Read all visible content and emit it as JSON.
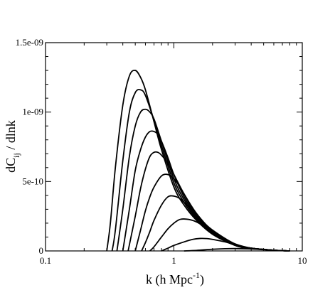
{
  "chart_data": {
    "type": "line",
    "title": "",
    "xlabel": {
      "main": "k (h Mpc",
      "sup": "-1",
      "close": ")"
    },
    "ylabel": {
      "main": "dC",
      "sub": "ij",
      "rest": " / dlnk"
    },
    "xscale": "log",
    "xlim": [
      0.1,
      10
    ],
    "ylim": [
      0,
      1.5e-09
    ],
    "xticks": [
      {
        "value": 0.1,
        "label": "0.1"
      },
      {
        "value": 1,
        "label": "1"
      },
      {
        "value": 10,
        "label": "10"
      }
    ],
    "yticks": [
      {
        "value": 0,
        "label": "0"
      },
      {
        "value": 5e-10,
        "label": "5e-10"
      },
      {
        "value": 1e-09,
        "label": "1e-09"
      },
      {
        "value": 1.5e-09,
        "label": "1.5e-09"
      }
    ],
    "grid": false,
    "legend": "none",
    "line_color": "#000000",
    "series": [
      {
        "x": [
          0.3,
          0.32,
          0.35,
          0.4,
          0.45,
          0.5,
          0.55,
          0.6,
          0.7,
          0.8,
          1.0,
          1.2,
          1.5,
          2.0,
          3.0,
          4.0,
          6.0,
          8.0
        ],
        "y": [
          0,
          2e-10,
          6e-10,
          1.05e-09,
          1.26e-09,
          1.3e-09,
          1.25e-09,
          1.16e-09,
          9.3e-10,
          7.3e-10,
          4.6e-10,
          3.3e-10,
          2.2e-10,
          1.2e-10,
          4e-11,
          2e-11,
          5e-12,
          0
        ]
      },
      {
        "x": [
          0.33,
          0.35,
          0.4,
          0.45,
          0.5,
          0.55,
          0.6,
          0.7,
          0.8,
          1.0,
          1.2,
          1.5,
          2.0,
          3.0,
          4.0,
          6.0,
          8.0
        ],
        "y": [
          0,
          1.5e-10,
          6.5e-10,
          1e-09,
          1.14e-09,
          1.16e-09,
          1.12e-09,
          9.4e-10,
          7.6e-10,
          4.9e-10,
          3.5e-10,
          2.3e-10,
          1.25e-10,
          4e-11,
          2e-11,
          5e-12,
          0
        ]
      },
      {
        "x": [
          0.36,
          0.4,
          0.45,
          0.5,
          0.55,
          0.6,
          0.65,
          0.7,
          0.8,
          1.0,
          1.2,
          1.5,
          2.0,
          3.0,
          4.0,
          6.0,
          8.0
        ],
        "y": [
          0,
          3e-10,
          6.8e-10,
          9e-10,
          1e-09,
          1.02e-09,
          1e-09,
          9.5e-10,
          7.9e-10,
          5.2e-10,
          3.7e-10,
          2.4e-10,
          1.3e-10,
          4e-11,
          2e-11,
          5e-12,
          0
        ]
      },
      {
        "x": [
          0.4,
          0.45,
          0.5,
          0.55,
          0.6,
          0.65,
          0.7,
          0.75,
          0.8,
          0.9,
          1.0,
          1.2,
          1.5,
          2.0,
          3.0,
          4.0,
          6.0,
          8.0
        ],
        "y": [
          0,
          3e-10,
          5.8e-10,
          7.3e-10,
          8.2e-10,
          8.6e-10,
          8.6e-10,
          8.4e-10,
          7.9e-10,
          6.7e-10,
          5.5e-10,
          3.9e-10,
          2.5e-10,
          1.35e-10,
          4e-11,
          2e-11,
          5e-12,
          0
        ]
      },
      {
        "x": [
          0.44,
          0.5,
          0.55,
          0.6,
          0.65,
          0.7,
          0.75,
          0.8,
          0.9,
          1.0,
          1.2,
          1.5,
          2.0,
          3.0,
          4.0,
          6.0,
          8.0
        ],
        "y": [
          0,
          2.5e-10,
          4.5e-10,
          5.9e-10,
          6.8e-10,
          7.1e-10,
          7.1e-10,
          6.9e-10,
          6.3e-10,
          5.5e-10,
          4.1e-10,
          2.6e-10,
          1.4e-10,
          4e-11,
          2e-11,
          5e-12,
          0
        ]
      },
      {
        "x": [
          0.5,
          0.55,
          0.6,
          0.65,
          0.7,
          0.8,
          0.9,
          1.0,
          1.1,
          1.2,
          1.5,
          2.0,
          3.0,
          4.0,
          6.0,
          8.0
        ],
        "y": [
          0,
          1.5e-10,
          2.9e-10,
          3.9e-10,
          4.6e-10,
          5.4e-10,
          5.5e-10,
          5.2e-10,
          4.7e-10,
          4.1e-10,
          2.7e-10,
          1.45e-10,
          4.5e-11,
          2e-11,
          5e-12,
          0
        ]
      },
      {
        "x": [
          0.56,
          0.6,
          0.65,
          0.7,
          0.8,
          0.9,
          1.0,
          1.1,
          1.2,
          1.4,
          1.6,
          2.0,
          3.0,
          4.0,
          6.0,
          8.0
        ],
        "y": [
          0,
          6e-11,
          1.4e-10,
          2.2e-10,
          3.3e-10,
          3.9e-10,
          3.95e-10,
          3.8e-10,
          3.5e-10,
          2.9e-10,
          2.3e-10,
          1.5e-10,
          5e-11,
          2e-11,
          5e-12,
          0
        ]
      },
      {
        "x": [
          0.65,
          0.7,
          0.8,
          0.9,
          1.0,
          1.1,
          1.2,
          1.4,
          1.6,
          2.0,
          2.5,
          3.0,
          4.0,
          6.0,
          8.0
        ],
        "y": [
          0,
          3e-11,
          1e-10,
          1.6e-10,
          2e-10,
          2.25e-10,
          2.3e-10,
          2.2e-10,
          1.95e-10,
          1.4e-10,
          8.5e-11,
          5e-11,
          2e-11,
          5e-12,
          0
        ]
      },
      {
        "x": [
          0.8,
          0.9,
          1.0,
          1.2,
          1.4,
          1.6,
          1.8,
          2.0,
          2.5,
          3.0,
          4.0,
          6.0,
          8.0
        ],
        "y": [
          0,
          2e-11,
          4e-11,
          6.5e-11,
          8.3e-11,
          9e-11,
          8.9e-11,
          8.3e-11,
          6.5e-11,
          4.5e-11,
          2e-11,
          5e-12,
          0
        ]
      },
      {
        "x": [
          1.2,
          1.5,
          2.0,
          2.5,
          3.0,
          4.0,
          5.0,
          6.0,
          8.0
        ],
        "y": [
          0,
          4e-12,
          1.2e-11,
          1.6e-11,
          1.7e-11,
          1.4e-11,
          9e-12,
          5e-12,
          0
        ]
      }
    ]
  }
}
